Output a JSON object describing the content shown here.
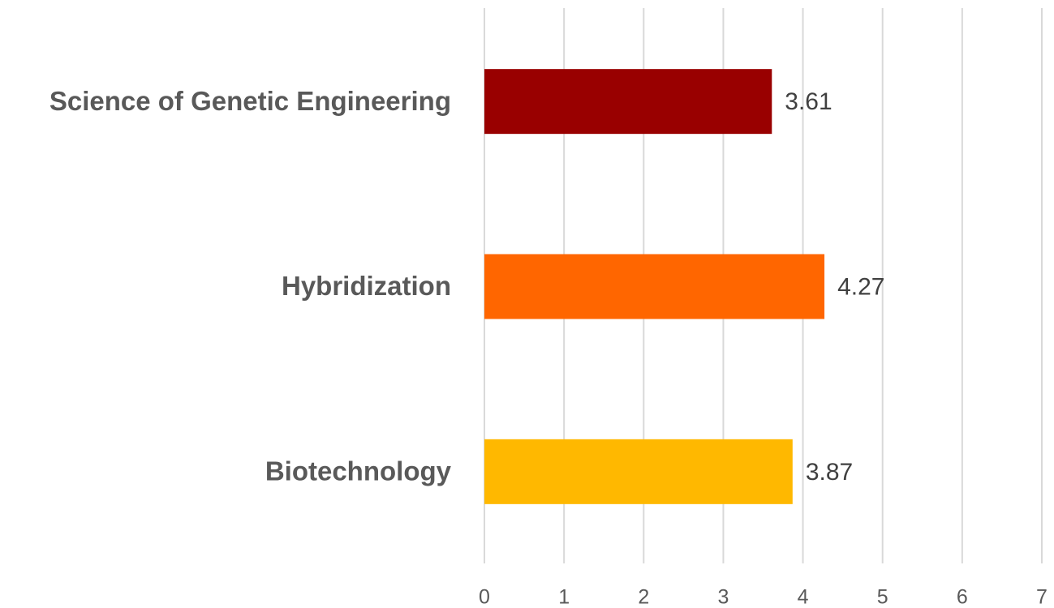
{
  "chart_data": {
    "type": "hbar",
    "categories": [
      "Science of Genetic Engineering",
      "Hybridization",
      "Biotechnology"
    ],
    "values": [
      3.61,
      4.27,
      3.87
    ],
    "colors": [
      "#990000",
      "#ff6600",
      "#ffb800"
    ],
    "xlim": [
      0,
      7
    ],
    "xticks": [
      0,
      1,
      2,
      3,
      4,
      5,
      6,
      7
    ],
    "grid": true
  }
}
